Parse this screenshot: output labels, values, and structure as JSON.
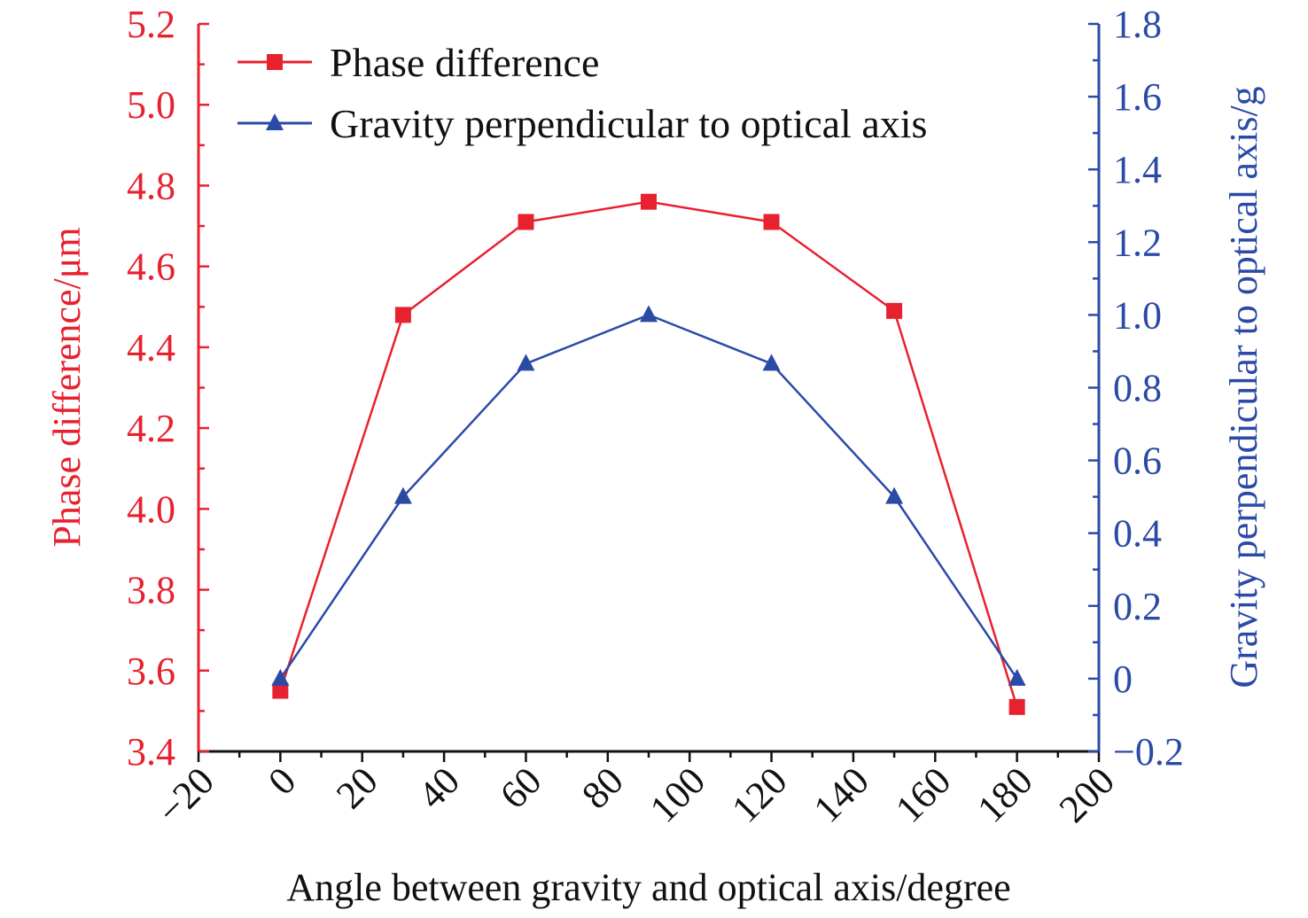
{
  "chart_data": {
    "type": "line",
    "xlabel": "Angle between gravity and optical axis/degree",
    "ylabel_left": "Phase difference/μm",
    "ylabel_right": "Gravity perpendicular to optical axis/g",
    "xlim": [
      -20,
      200
    ],
    "ylim_left": [
      3.4,
      5.2
    ],
    "ylim_right": [
      -0.2,
      1.8
    ],
    "x_ticks": [
      "−20",
      "0",
      "20",
      "40",
      "60",
      "80",
      "100",
      "120",
      "140",
      "160",
      "180",
      "200"
    ],
    "y_ticks_left": [
      "3.4",
      "3.6",
      "3.8",
      "4.0",
      "4.2",
      "4.4",
      "4.6",
      "4.8",
      "5.0",
      "5.2"
    ],
    "y_ticks_right": [
      "−0.2",
      "0",
      "0.2",
      "0.4",
      "0.6",
      "0.8",
      "1.0",
      "1.2",
      "1.4",
      "1.6",
      "1.8"
    ],
    "x": [
      0,
      30,
      60,
      90,
      120,
      150,
      180
    ],
    "series": [
      {
        "name": "Phase difference",
        "axis": "left",
        "marker": "square",
        "color": "#e8212e",
        "values": [
          3.55,
          4.48,
          4.71,
          4.76,
          4.71,
          4.49,
          3.51
        ]
      },
      {
        "name": "Gravity perpendicular to optical axis",
        "axis": "right",
        "marker": "triangle",
        "color": "#2b4aa6",
        "values": [
          0.0,
          0.5,
          0.866,
          1.0,
          0.866,
          0.5,
          0.0
        ]
      }
    ],
    "legend_position": "top-left",
    "grid": false,
    "colors": {
      "left_axis": "#e8212e",
      "right_axis": "#2b4aa6",
      "bottom_axis": "#111111"
    }
  }
}
